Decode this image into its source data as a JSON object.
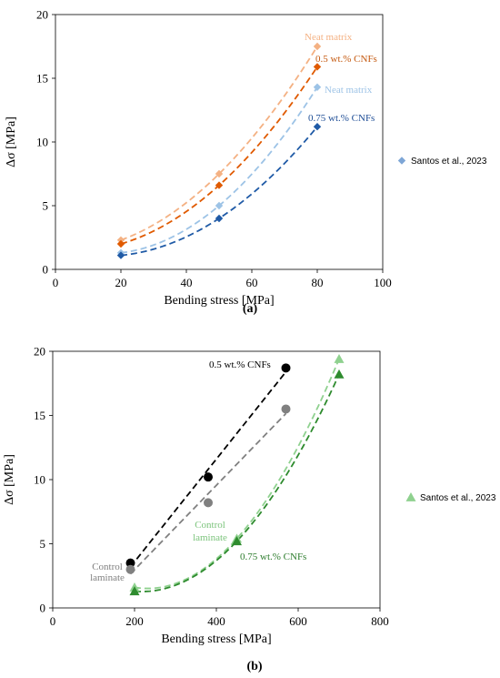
{
  "chart_data": [
    {
      "type": "scatter",
      "panel_label": "(a)",
      "xlabel": "Bending stress [MPa]",
      "ylabel": "Δσ [MPa]",
      "xlim": [
        0,
        100
      ],
      "ylim": [
        0,
        20
      ],
      "xticks": [
        "0",
        "20",
        "40",
        "60",
        "80",
        "100"
      ],
      "yticks": [
        "0",
        "5",
        "10",
        "15",
        "20"
      ],
      "grid": false,
      "legend": {
        "placement": "right",
        "entries": [
          "Santos et al., 2023"
        ],
        "marker": "diamond",
        "color": "#7ea6d6"
      },
      "series": [
        {
          "x": [
            20,
            50,
            80
          ],
          "y": [
            2.3,
            7.5,
            17.5
          ],
          "color": "#f4b183",
          "marker": "diamond",
          "fit": "dashed"
        },
        {
          "x": [
            20,
            50,
            80
          ],
          "y": [
            2.0,
            6.6,
            15.9
          ],
          "color": "#e05a00",
          "marker": "diamond",
          "fit": "dashed"
        },
        {
          "x": [
            20,
            50,
            80
          ],
          "y": [
            1.3,
            5.0,
            14.3
          ],
          "color": "#9dc3e6",
          "marker": "diamond",
          "fit": "dashed"
        },
        {
          "x": [
            20,
            50,
            80
          ],
          "y": [
            1.1,
            4.0,
            11.2
          ],
          "color": "#1f5aa6",
          "marker": "diamond",
          "fit": "dashed"
        }
      ],
      "annotations": [
        {
          "text": "Neat matrix",
          "color": "#f4b183"
        },
        {
          "text": "0.5 wt.% CNFs",
          "color": "#c55a11"
        },
        {
          "text": "Neat matrix",
          "color": "#9dc3e6"
        },
        {
          "text": "0.75 wt.% CNFs",
          "color": "#1f4e96"
        }
      ]
    },
    {
      "type": "scatter",
      "panel_label": "(b)",
      "xlabel": "Bending stress [MPa]",
      "ylabel": "Δσ [MPa]",
      "xlim": [
        0,
        800
      ],
      "ylim": [
        0,
        20
      ],
      "xticks": [
        "0",
        "200",
        "400",
        "600",
        "800"
      ],
      "yticks": [
        "0",
        "5",
        "10",
        "15",
        "20"
      ],
      "grid": false,
      "legend": {
        "placement": "right",
        "entries": [
          "Santos et al., 2023"
        ],
        "marker": "triangle",
        "color": "#8fd18f"
      },
      "series": [
        {
          "x": [
            190,
            380,
            570
          ],
          "y": [
            3.5,
            10.2,
            18.7
          ],
          "color": "#000000",
          "marker": "circle",
          "fit": "dashed"
        },
        {
          "x": [
            190,
            380,
            570
          ],
          "y": [
            3.0,
            8.2,
            15.5
          ],
          "color": "#808080",
          "marker": "circle",
          "fit": "dashed"
        },
        {
          "x": [
            200,
            450,
            700
          ],
          "y": [
            1.6,
            5.4,
            19.4
          ],
          "color": "#8fd18f",
          "marker": "triangle",
          "fit": "dashed"
        },
        {
          "x": [
            200,
            450,
            700
          ],
          "y": [
            1.3,
            5.2,
            18.2
          ],
          "color": "#2e8b2e",
          "marker": "triangle",
          "fit": "dashed"
        }
      ],
      "annotations": [
        {
          "text": "0.5 wt.% CNFs",
          "color": "#000000"
        },
        {
          "text": "Control",
          "color": "#808080"
        },
        {
          "text": "laminate",
          "color": "#808080"
        },
        {
          "text": "Control",
          "color": "#7cc47c"
        },
        {
          "text": "laminate",
          "color": "#7cc47c"
        },
        {
          "text": "0.75 wt.% CNFs",
          "color": "#2e7d2e"
        }
      ]
    }
  ]
}
